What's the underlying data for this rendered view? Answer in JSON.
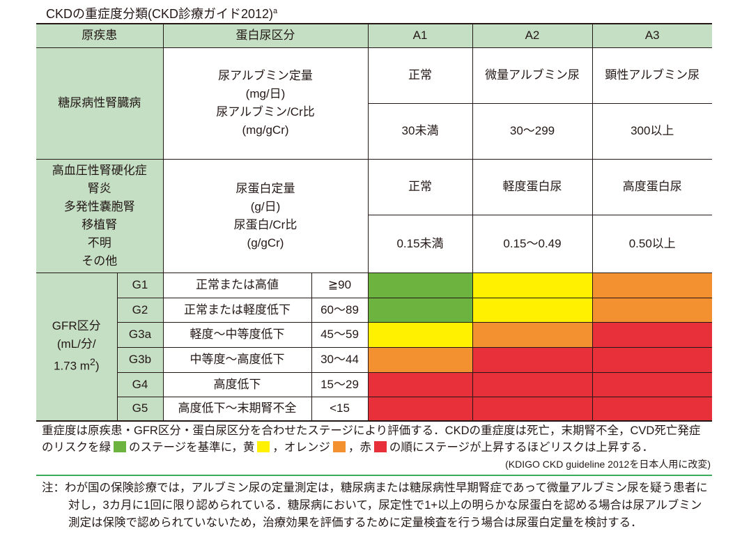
{
  "title": "CKDの重症度分類(CKD診療ガイド2012)",
  "title_sup": "a",
  "header": {
    "disease": "原疾患",
    "protein": "蛋白尿区分",
    "a1": "A1",
    "a2": "A2",
    "a3": "A3"
  },
  "diabetes": {
    "disease": "糖尿病性腎臓病",
    "measure": [
      "尿アルブミン定量",
      "(mg/日)",
      "尿アルブミン/Cr比",
      "(mg/gCr)"
    ],
    "cats": [
      "正常",
      "微量アルブミン尿",
      "顕性アルブミン尿"
    ],
    "ranges": [
      "30未満",
      "30〜299",
      "300以上"
    ]
  },
  "other": {
    "disease": [
      "高血圧性腎硬化症",
      "腎炎",
      "多発性嚢胞腎",
      "移植腎",
      "不明",
      "その他"
    ],
    "measure": [
      "尿蛋白定量",
      "(g/日)",
      "尿蛋白/Cr比",
      "(g/gCr)"
    ],
    "cats": [
      "正常",
      "軽度蛋白尿",
      "高度蛋白尿"
    ],
    "ranges": [
      "0.15未満",
      "0.15〜0.49",
      "0.50以上"
    ]
  },
  "gfr": {
    "label": [
      "GFR区分",
      "(mL/分/",
      "1.73 m"
    ],
    "label_sup": "2",
    "label_end": ")",
    "rows": [
      {
        "g": "G1",
        "desc": "正常または高値",
        "val": "≧90",
        "colors": [
          "green",
          "yellow",
          "orange"
        ]
      },
      {
        "g": "G2",
        "desc": "正常または軽度低下",
        "val": "60〜89",
        "colors": [
          "green",
          "yellow",
          "orange"
        ]
      },
      {
        "g": "G3a",
        "desc": "軽度〜中等度低下",
        "val": "45〜59",
        "colors": [
          "yellow",
          "orange",
          "red"
        ]
      },
      {
        "g": "G3b",
        "desc": "中等度〜高度低下",
        "val": "30〜44",
        "colors": [
          "orange",
          "red",
          "red"
        ]
      },
      {
        "g": "G4",
        "desc": "高度低下",
        "val": "15〜29",
        "colors": [
          "red",
          "red",
          "red"
        ]
      },
      {
        "g": "G5",
        "desc": "高度低下〜末期腎不全",
        "val": "<15",
        "colors": [
          "red",
          "red",
          "red"
        ]
      }
    ]
  },
  "colors": {
    "green": "#6db33f",
    "yellow": "#fff100",
    "orange": "#f39130",
    "red": "#e8303a"
  },
  "footer": {
    "p1": "重症度は原疾患・GFR区分・蛋白尿区分を合わせたステージにより評価する．CKDの重症度は死亡，末期腎不全，CVD死亡発症のリスクを緑",
    "p2": "のステージを基準に，黄",
    "p3": "，オレンジ",
    "p4": "，赤",
    "p5": "の順にステージが上昇するほどリスクは上昇する．",
    "source": "(KDIGO CKD guideline 2012を日本人用に改変)"
  },
  "note": "注：わが国の保険診療では，アルブミン尿の定量測定は，糖尿病または糖尿病性早期腎症であって微量アルブミン尿を疑う患者に対し，3カ月に1回に限り認められている．糖尿病において，尿定性で1+以上の明らかな尿蛋白を認める場合は尿アルブミン測定は保険で認められていないため，治療効果を評価するために定量検査を行う場合は尿蛋白定量を検討する．"
}
